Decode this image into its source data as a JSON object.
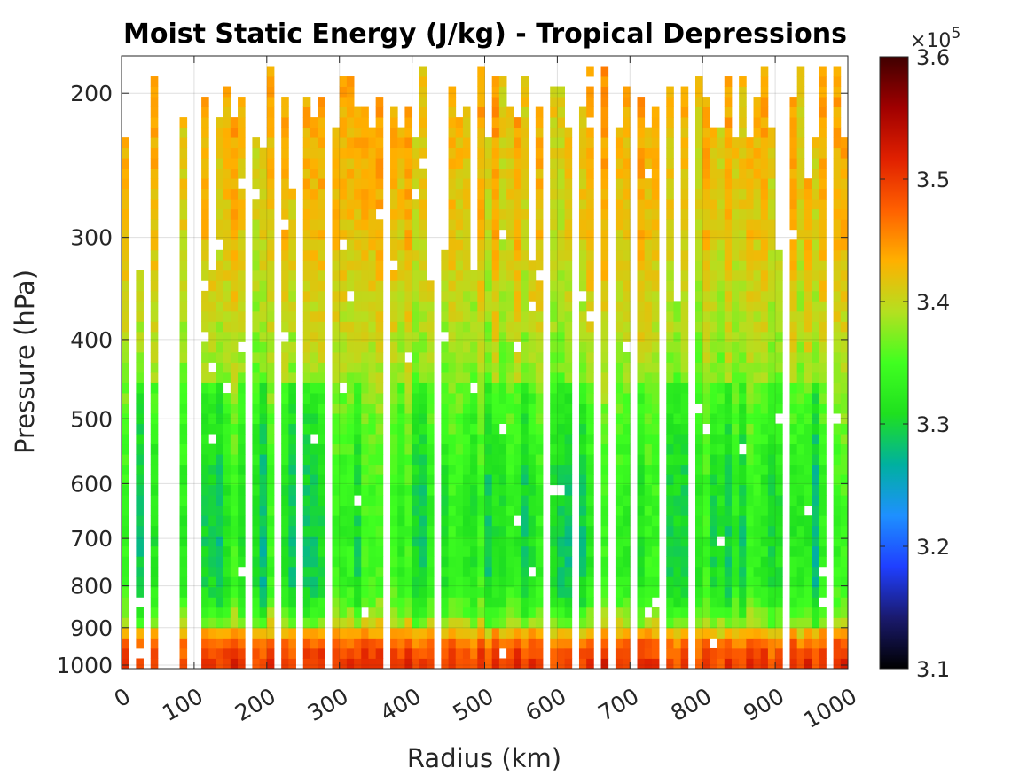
{
  "chart_data": {
    "type": "heatmap",
    "title": "Moist Static Energy (J/kg) - Tropical Depressions",
    "xlabel": "Radius (km)",
    "ylabel": "Pressure (hPa)",
    "x_ticks": [
      "0",
      "100",
      "200",
      "300",
      "400",
      "500",
      "600",
      "700",
      "800",
      "900",
      "1000"
    ],
    "x_tick_values": [
      0,
      100,
      200,
      300,
      400,
      500,
      600,
      700,
      800,
      900,
      1000
    ],
    "xlim": [
      0,
      1000
    ],
    "y_ticks": [
      "200",
      "300",
      "400",
      "500",
      "600",
      "700",
      "800",
      "900",
      "1000"
    ],
    "y_tick_values": [
      200,
      300,
      400,
      500,
      600,
      700,
      800,
      900,
      1000
    ],
    "ylim": [
      1010,
      180
    ],
    "y_scale": "log",
    "y_reversed": true,
    "grid": true,
    "colorbar": {
      "range": [
        310000,
        360000
      ],
      "tick_values": [
        3.1,
        3.2,
        3.3,
        3.4,
        3.5,
        3.6
      ],
      "tick_labels": [
        "3.1",
        "3.2",
        "3.3",
        "3.4",
        "3.5",
        "3.6"
      ],
      "exponent_label": "×10",
      "exponent_power": "5",
      "colormap": [
        "#000000",
        "#1a1a6e",
        "#1f3fff",
        "#1e90ff",
        "#00b0a0",
        "#1fe01f",
        "#40ff20",
        "#b4e020",
        "#ffb000",
        "#ff6000",
        "#e02000",
        "#a00000",
        "#400000"
      ]
    },
    "profile_energy_by_pressure": {
      "pressure_hPa": [
        1000,
        950,
        900,
        850,
        800,
        700,
        600,
        500,
        400,
        300,
        200
      ],
      "mse_J_per_kg": [
        350000,
        348000,
        341000,
        336500,
        334000,
        333500,
        334000,
        336000,
        339000,
        341500,
        343000
      ]
    },
    "radius_bins_km": {
      "start": 0,
      "end": 1000,
      "count": 100
    }
  }
}
